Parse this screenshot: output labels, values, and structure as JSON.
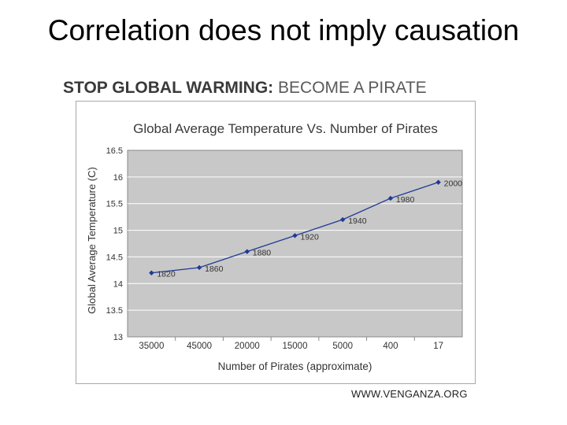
{
  "slide_title": "Correlation does not imply causation",
  "banner": {
    "bold": "STOP GLOBAL WARMING:",
    "light": "BECOME A PIRATE"
  },
  "credit": "WWW.VENGANZA.ORG",
  "colors": {
    "plot_bg": "#c8c8c8",
    "line": "#1f3a93",
    "grid": "#ffffff"
  },
  "chart_data": {
    "type": "line",
    "title": "Global Average Temperature Vs. Number of Pirates",
    "xlabel": "Number of Pirates (approximate)",
    "ylabel": "Global Average Temperature (C)",
    "categories": [
      "35000",
      "45000",
      "20000",
      "15000",
      "5000",
      "400",
      "17"
    ],
    "point_labels": [
      "1820",
      "1860",
      "1880",
      "1920",
      "1940",
      "1980",
      "2000"
    ],
    "values": [
      14.2,
      14.3,
      14.6,
      14.9,
      15.2,
      15.6,
      15.9
    ],
    "ylim": [
      13,
      16.5
    ],
    "yticks": [
      "13",
      "13.5",
      "14",
      "14.5",
      "15",
      "15.5",
      "16",
      "16.5"
    ],
    "grid": true,
    "legend": "none"
  }
}
